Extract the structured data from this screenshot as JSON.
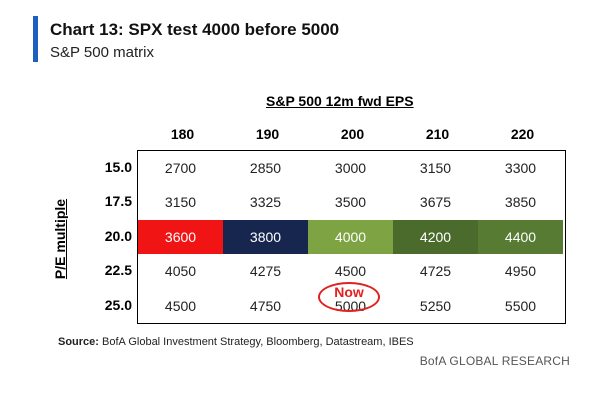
{
  "header": {
    "title": "Chart 13: SPX test 4000 before 5000",
    "subtitle": "S&P 500 matrix"
  },
  "chart_data": {
    "type": "table",
    "column_title": "S&P 500 12m fwd EPS",
    "row_title": "P/E multiple",
    "columns": [
      "180",
      "190",
      "200",
      "210",
      "220"
    ],
    "rows": [
      "15.0",
      "17.5",
      "20.0",
      "22.5",
      "25.0"
    ],
    "values": [
      [
        "2700",
        "2850",
        "3000",
        "3150",
        "3300"
      ],
      [
        "3150",
        "3325",
        "3500",
        "3675",
        "3850"
      ],
      [
        "3600",
        "3800",
        "4000",
        "4200",
        "4400"
      ],
      [
        "4050",
        "4275",
        "4500",
        "4725",
        "4950"
      ],
      [
        "4500",
        "4750",
        "5000",
        "5250",
        "5500"
      ]
    ],
    "highlight_row": 2,
    "highlight_colors": [
      "#f01414",
      "#17264f",
      "#7da343",
      "#4b6b2d",
      "#587b34"
    ],
    "annotation": {
      "text": "Now",
      "row": 4,
      "col": 2,
      "color": "#e32020"
    }
  },
  "footer": {
    "source_label": "Source:",
    "source_text": "BofA Global Investment Strategy, Bloomberg, Datastream, IBES",
    "brand": "BofA GLOBAL RESEARCH"
  }
}
